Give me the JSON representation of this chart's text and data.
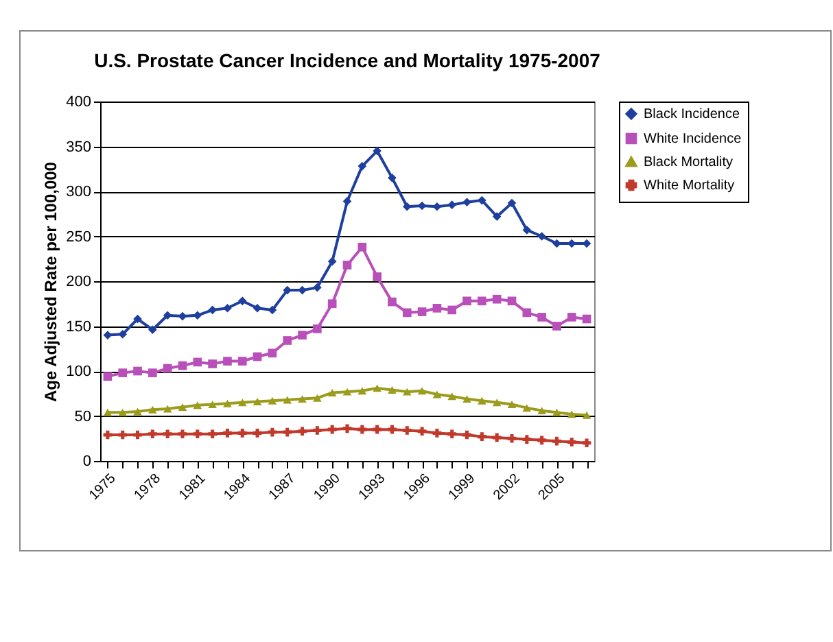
{
  "chart_data": {
    "type": "line",
    "title": "U.S. Prostate Cancer Incidence and Mortality 1975-2007",
    "ylabel": "Age Adjusted Rate per 100,000",
    "categories": [
      "1975",
      null,
      null,
      "1978",
      null,
      null,
      "1981",
      null,
      null,
      "1984",
      null,
      null,
      "1987",
      null,
      null,
      "1990",
      null,
      null,
      "1993",
      null,
      null,
      "1996",
      null,
      null,
      "1999",
      null,
      null,
      "2002",
      null,
      null,
      "2005",
      null,
      null
    ],
    "series": [
      {
        "name": "Black Incidence",
        "color": "#1f3f9f",
        "marker": "diamond",
        "values": [
          140,
          141,
          158,
          146,
          162,
          161,
          162,
          168,
          170,
          178,
          170,
          168,
          190,
          190,
          193,
          222,
          289,
          328,
          345,
          315,
          283,
          284,
          283,
          285,
          288,
          290,
          272,
          287,
          257,
          250,
          242,
          242,
          242
        ]
      },
      {
        "name": "White Incidence",
        "color": "#b94fb9",
        "marker": "square",
        "values": [
          94,
          98,
          100,
          98,
          103,
          106,
          110,
          108,
          111,
          111,
          116,
          120,
          134,
          140,
          147,
          175,
          218,
          238,
          205,
          177,
          165,
          166,
          170,
          168,
          178,
          178,
          180,
          178,
          165,
          160,
          150,
          160,
          158
        ]
      },
      {
        "name": "Black Mortality",
        "color": "#9c9c1c",
        "marker": "triangle",
        "values": [
          54,
          54,
          55,
          57,
          58,
          60,
          62,
          63,
          64,
          65,
          66,
          67,
          68,
          69,
          70,
          76,
          77,
          78,
          81,
          79,
          77,
          78,
          74,
          72,
          69,
          67,
          65,
          63,
          59,
          56,
          54,
          52,
          51
        ]
      },
      {
        "name": "White Mortality",
        "color": "#c0392b",
        "marker": "cross",
        "values": [
          29,
          29,
          29,
          30,
          30,
          30,
          30,
          30,
          31,
          31,
          31,
          32,
          32,
          33,
          34,
          35,
          36,
          35,
          35,
          35,
          34,
          33,
          31,
          30,
          29,
          27,
          26,
          25,
          24,
          23,
          22,
          21,
          20
        ]
      }
    ],
    "ylim": [
      0,
      400
    ],
    "yticks": [
      0,
      50,
      100,
      150,
      200,
      250,
      300,
      350,
      400
    ],
    "grid": "y",
    "legend": "right"
  }
}
